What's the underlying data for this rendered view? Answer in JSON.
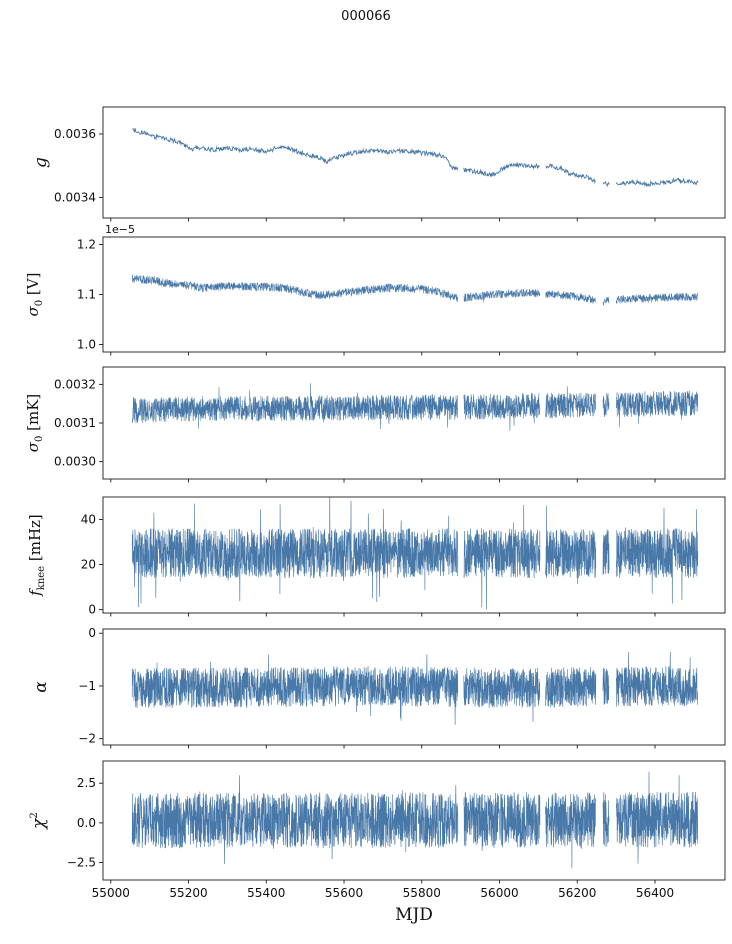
{
  "title": "000066",
  "line_color": "#4878a8",
  "axis_color": "#1a1a1a",
  "x_axis": {
    "label": "MJD",
    "tick_values": [
      55000,
      55200,
      55400,
      55600,
      55800,
      56000,
      56200,
      56400
    ],
    "tick_labels": [
      "55000",
      "55200",
      "55400",
      "55600",
      "55800",
      "56000",
      "56200",
      "56400"
    ],
    "xlim": [
      54980,
      56580
    ]
  },
  "data_gaps": [
    [
      55893,
      55908
    ],
    [
      56104,
      56118
    ],
    [
      56248,
      56266
    ],
    [
      56282,
      56300
    ]
  ],
  "chart_data": [
    {
      "type": "line",
      "name": "g",
      "ylabel_text": "g",
      "ylabel": [
        {
          "t": "g",
          "i": true
        }
      ],
      "yticks": {
        "values": [
          0.0036,
          0.0034
        ],
        "labels": [
          "0.0036",
          "0.0034"
        ]
      },
      "ylim": [
        0.003335,
        0.003685
      ],
      "offset_text": "",
      "x_range": [
        55055,
        56510
      ],
      "n": 950,
      "noise": 7e-06,
      "spike_prob": 0.0,
      "spike_scale": 1.0,
      "trend": [
        [
          55055,
          0.003615
        ],
        [
          55080,
          0.003605
        ],
        [
          55100,
          0.003596
        ],
        [
          55125,
          0.003588
        ],
        [
          55150,
          0.003582
        ],
        [
          55170,
          0.003576
        ],
        [
          55190,
          0.003565
        ],
        [
          55210,
          0.00355
        ],
        [
          55225,
          0.003558
        ],
        [
          55245,
          0.003552
        ],
        [
          55265,
          0.00355
        ],
        [
          55285,
          0.003555
        ],
        [
          55310,
          0.003553
        ],
        [
          55335,
          0.003549
        ],
        [
          55360,
          0.003552
        ],
        [
          55385,
          0.003549
        ],
        [
          55405,
          0.003543
        ],
        [
          55425,
          0.003558
        ],
        [
          55445,
          0.003561
        ],
        [
          55465,
          0.003551
        ],
        [
          55490,
          0.00354
        ],
        [
          55515,
          0.003532
        ],
        [
          55540,
          0.003524
        ],
        [
          55555,
          0.003512
        ],
        [
          55570,
          0.00352
        ],
        [
          55590,
          0.00353
        ],
        [
          55615,
          0.003538
        ],
        [
          55640,
          0.003543
        ],
        [
          55665,
          0.003547
        ],
        [
          55690,
          0.003546
        ],
        [
          55715,
          0.003543
        ],
        [
          55740,
          0.003547
        ],
        [
          55765,
          0.003546
        ],
        [
          55790,
          0.003542
        ],
        [
          55815,
          0.003538
        ],
        [
          55840,
          0.003534
        ],
        [
          55860,
          0.003527
        ],
        [
          55875,
          0.003495
        ],
        [
          55890,
          0.003488
        ],
        [
          55910,
          0.003487
        ],
        [
          55930,
          0.003483
        ],
        [
          55950,
          0.00348
        ],
        [
          55970,
          0.003473
        ],
        [
          55990,
          0.003472
        ],
        [
          56005,
          0.003488
        ],
        [
          56020,
          0.003498
        ],
        [
          56040,
          0.003502
        ],
        [
          56065,
          0.003501
        ],
        [
          56090,
          0.003499
        ],
        [
          56115,
          0.0035
        ],
        [
          56140,
          0.003497
        ],
        [
          56160,
          0.00349
        ],
        [
          56180,
          0.003475
        ],
        [
          56200,
          0.00347
        ],
        [
          56220,
          0.003467
        ],
        [
          56240,
          0.003455
        ],
        [
          56260,
          0.003446
        ],
        [
          56280,
          0.003442
        ],
        [
          56300,
          0.003441
        ],
        [
          56320,
          0.003444
        ],
        [
          56340,
          0.003447
        ],
        [
          56360,
          0.003446
        ],
        [
          56380,
          0.003442
        ],
        [
          56400,
          0.003444
        ],
        [
          56420,
          0.003447
        ],
        [
          56440,
          0.00345
        ],
        [
          56460,
          0.003454
        ],
        [
          56480,
          0.00345
        ],
        [
          56510,
          0.003446
        ]
      ]
    },
    {
      "type": "line",
      "name": "sigma0_V",
      "ylabel_text": "σ0 [V]",
      "ylabel": [
        {
          "t": "σ",
          "i": true
        },
        {
          "t": "0",
          "sub": true
        },
        {
          "t": " [V]"
        }
      ],
      "yticks": {
        "values": [
          1.2,
          1.1,
          1.0
        ],
        "labels": [
          "1.2",
          "1.1",
          "1.0"
        ]
      },
      "ylim": [
        0.985,
        1.215
      ],
      "offset_text": "1e−5",
      "x_range": [
        55055,
        56510
      ],
      "n": 2400,
      "noise": 0.0085,
      "spike_prob": 0.004,
      "spike_scale": 1.8,
      "trend": [
        [
          55055,
          1.132
        ],
        [
          55085,
          1.13
        ],
        [
          55115,
          1.128
        ],
        [
          55145,
          1.122
        ],
        [
          55175,
          1.12
        ],
        [
          55205,
          1.118
        ],
        [
          55235,
          1.113
        ],
        [
          55265,
          1.115
        ],
        [
          55295,
          1.117
        ],
        [
          55325,
          1.117
        ],
        [
          55355,
          1.116
        ],
        [
          55385,
          1.115
        ],
        [
          55415,
          1.115
        ],
        [
          55445,
          1.113
        ],
        [
          55475,
          1.108
        ],
        [
          55505,
          1.103
        ],
        [
          55535,
          1.099
        ],
        [
          55565,
          1.1
        ],
        [
          55595,
          1.103
        ],
        [
          55625,
          1.106
        ],
        [
          55655,
          1.109
        ],
        [
          55685,
          1.111
        ],
        [
          55715,
          1.113
        ],
        [
          55745,
          1.113
        ],
        [
          55775,
          1.112
        ],
        [
          55805,
          1.11
        ],
        [
          55835,
          1.106
        ],
        [
          55865,
          1.1
        ],
        [
          55895,
          1.092
        ],
        [
          55925,
          1.095
        ],
        [
          55955,
          1.098
        ],
        [
          55985,
          1.1
        ],
        [
          56015,
          1.102
        ],
        [
          56045,
          1.103
        ],
        [
          56075,
          1.103
        ],
        [
          56105,
          1.102
        ],
        [
          56135,
          1.1
        ],
        [
          56165,
          1.098
        ],
        [
          56195,
          1.096
        ],
        [
          56225,
          1.093
        ],
        [
          56255,
          1.085
        ],
        [
          56285,
          1.088
        ],
        [
          56315,
          1.09
        ],
        [
          56345,
          1.091
        ],
        [
          56375,
          1.092
        ],
        [
          56405,
          1.093
        ],
        [
          56435,
          1.094
        ],
        [
          56465,
          1.095
        ],
        [
          56510,
          1.095
        ]
      ]
    },
    {
      "type": "line",
      "name": "sigma0_mK",
      "ylabel_text": "σ0 [mK]",
      "ylabel": [
        {
          "t": "σ",
          "i": true
        },
        {
          "t": "0",
          "sub": true
        },
        {
          "t": " [mK]"
        }
      ],
      "yticks": {
        "values": [
          0.0032,
          0.0031,
          0.003
        ],
        "labels": [
          "0.0032",
          "0.0031",
          "0.0030"
        ]
      },
      "ylim": [
        0.002955,
        0.003245
      ],
      "offset_text": "",
      "x_range": [
        55055,
        56510
      ],
      "n": 2800,
      "noise": 3.3e-05,
      "spike_prob": 0.015,
      "spike_scale": 2.0,
      "trend": [
        [
          55055,
          0.003132
        ],
        [
          55200,
          0.003136
        ],
        [
          55400,
          0.003138
        ],
        [
          55700,
          0.003139
        ],
        [
          55900,
          0.003141
        ],
        [
          56100,
          0.003145
        ],
        [
          56300,
          0.003148
        ],
        [
          56510,
          0.003152
        ]
      ]
    },
    {
      "type": "line",
      "name": "f_knee",
      "ylabel_text": "f_knee [mHz]",
      "ylabel": [
        {
          "t": "f",
          "i": true
        },
        {
          "t": "knee",
          "sub": true
        },
        {
          "t": " [mHz]"
        }
      ],
      "yticks": {
        "values": [
          40,
          20,
          0
        ],
        "labels": [
          "40",
          "20",
          "0"
        ]
      },
      "ylim": [
        -1.5,
        50
      ],
      "offset_text": "",
      "x_range": [
        55055,
        56510
      ],
      "n": 3200,
      "noise": 11,
      "spike_prob": 0.02,
      "spike_scale": 2.3,
      "trend": [
        [
          55055,
          25
        ],
        [
          56510,
          25
        ]
      ]
    },
    {
      "type": "line",
      "name": "alpha",
      "ylabel_text": "α",
      "ylabel": [
        {
          "t": "α",
          "i": true
        }
      ],
      "yticks": {
        "values": [
          0,
          -1,
          -2
        ],
        "labels": [
          "0",
          "−1",
          "−2"
        ]
      },
      "ylim": [
        -2.12,
        0.08
      ],
      "offset_text": "",
      "x_range": [
        55055,
        56510
      ],
      "n": 3000,
      "noise": 0.38,
      "spike_prob": 0.015,
      "spike_scale": 1.9,
      "trend": [
        [
          55055,
          -1.04
        ],
        [
          55400,
          -1.02
        ],
        [
          55700,
          -1.0
        ],
        [
          56000,
          -1.04
        ],
        [
          56300,
          -1.02
        ],
        [
          56510,
          -1.0
        ]
      ]
    },
    {
      "type": "line",
      "name": "chi2",
      "ylabel_text": "χ2",
      "ylabel": [
        {
          "t": "χ",
          "i": true
        },
        {
          "t": "2",
          "sup": true
        }
      ],
      "yticks": {
        "values": [
          2.5,
          0.0,
          -2.5
        ],
        "labels": [
          "2.5",
          "0.0",
          "−2.5"
        ]
      },
      "ylim": [
        -3.6,
        3.9
      ],
      "offset_text": "",
      "x_range": [
        55055,
        56510
      ],
      "n": 3200,
      "noise": 1.75,
      "spike_prob": 0.015,
      "spike_scale": 1.8,
      "trend": [
        [
          55055,
          0.15
        ],
        [
          56510,
          0.2
        ]
      ]
    }
  ]
}
